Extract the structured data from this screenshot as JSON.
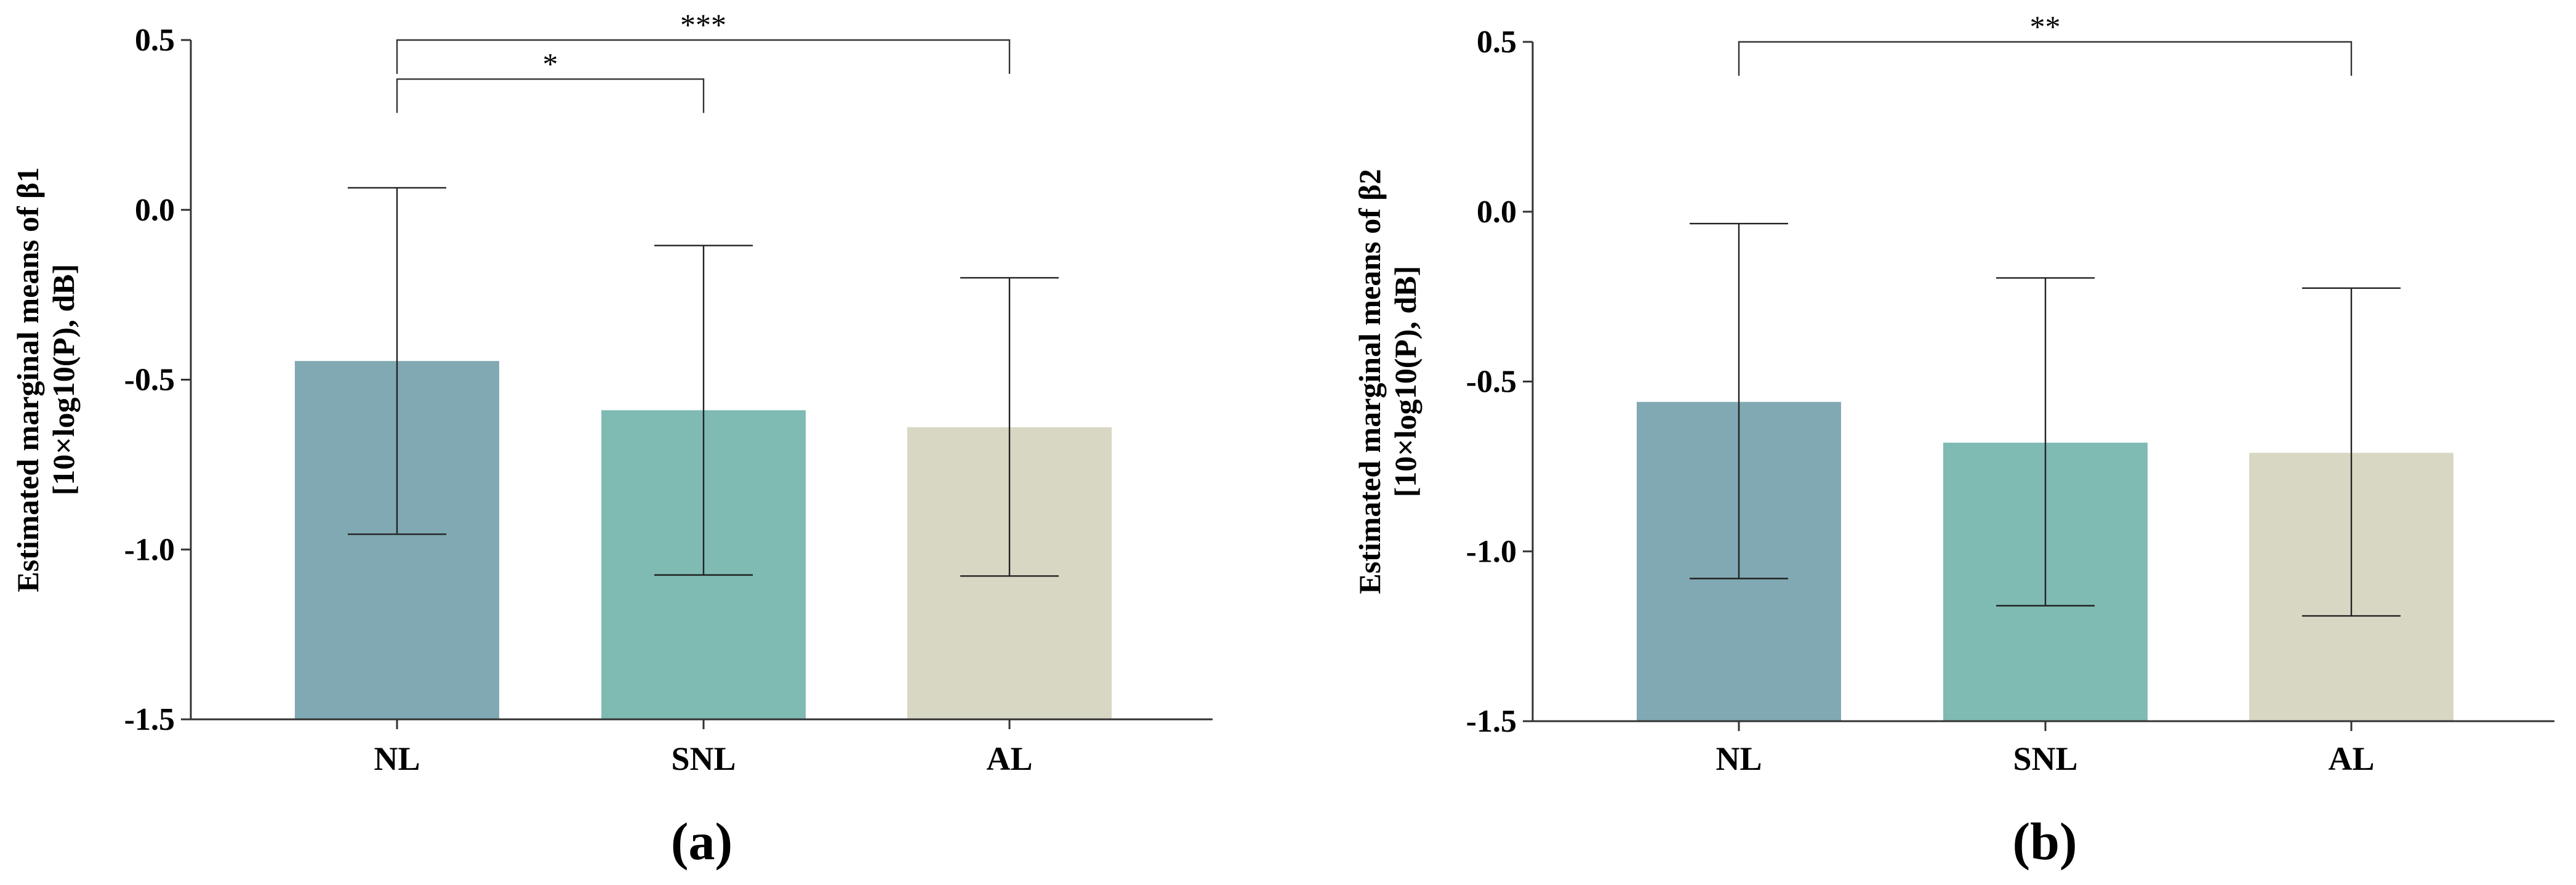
{
  "chart_data": [
    {
      "type": "bar",
      "panel": "(a)",
      "categories": [
        "NL",
        "SNL",
        "AL"
      ],
      "values": [
        -0.445,
        -0.59,
        -0.64
      ],
      "error_upper": [
        0.065,
        -0.105,
        -0.2
      ],
      "error_lower": [
        -0.955,
        -1.075,
        -1.078
      ],
      "colors": [
        "#80a9b3",
        "#7fbab3",
        "#d8d7c3"
      ],
      "ylabel_line1": "Estimated marginal means of β1",
      "ylabel_line2": "[10×log10(P), dB]",
      "ylim": [
        -1.5,
        0.5
      ],
      "yticks": [
        "0.5",
        "0.0",
        "-0.5",
        "-1.0",
        "-1.5"
      ],
      "ytick_values": [
        0.5,
        0.0,
        -0.5,
        -1.0,
        -1.5
      ],
      "significance": [
        {
          "from": 0,
          "to": 2,
          "level": 0.5,
          "label": "***"
        },
        {
          "from": 0,
          "to": 1,
          "level": 0.385,
          "label": "*"
        }
      ]
    },
    {
      "type": "bar",
      "panel": "(b)",
      "categories": [
        "NL",
        "SNL",
        "AL"
      ],
      "values": [
        -0.56,
        -0.68,
        -0.71
      ],
      "error_upper": [
        -0.035,
        -0.195,
        -0.225
      ],
      "error_lower": [
        -1.08,
        -1.16,
        -1.19
      ],
      "colors": [
        "#80a9b3",
        "#7fbab3",
        "#d8d7c3"
      ],
      "ylabel_line1": "Estimated marginal means of β2",
      "ylabel_line2": "[10×log10(P), dB]",
      "ylim": [
        -1.5,
        0.5
      ],
      "yticks": [
        "0.5",
        "0.0",
        "-0.5",
        "-1.0",
        "-1.5"
      ],
      "ytick_values": [
        0.5,
        0.0,
        -0.5,
        -1.0,
        -1.5
      ],
      "significance": [
        {
          "from": 0,
          "to": 2,
          "level": 0.5,
          "label": "**"
        }
      ]
    }
  ]
}
